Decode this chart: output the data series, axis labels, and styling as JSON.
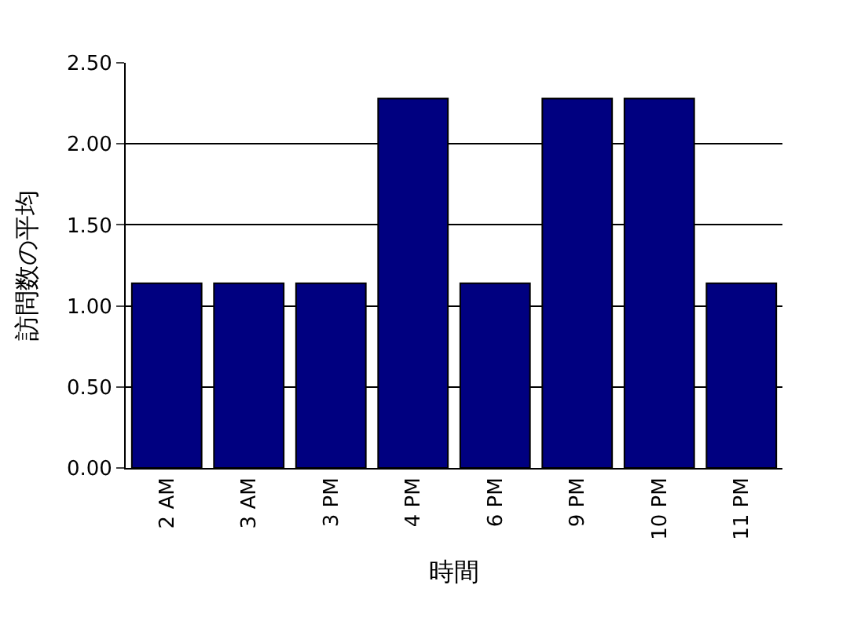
{
  "chart_data": {
    "type": "bar",
    "xlabel": "時間",
    "ylabel": "訪問数の平均",
    "categories": [
      "2 AM",
      "3 AM",
      "3 PM",
      "4 PM",
      "6 PM",
      "9 PM",
      "10 PM",
      "11 PM"
    ],
    "values": [
      1.14,
      1.14,
      1.14,
      2.28,
      1.14,
      2.28,
      2.28,
      1.14
    ],
    "color": "#000080",
    "ylim": [
      0,
      2.5
    ],
    "yticks": [
      {
        "value": 0,
        "label": "0.00"
      },
      {
        "value": 0.5,
        "label": "0.50"
      },
      {
        "value": 1,
        "label": "1.00"
      },
      {
        "value": 1.5,
        "label": "1.50"
      },
      {
        "value": 2,
        "label": "2.00"
      },
      {
        "value": 2.5,
        "label": "2.50"
      }
    ],
    "grid": "y"
  }
}
